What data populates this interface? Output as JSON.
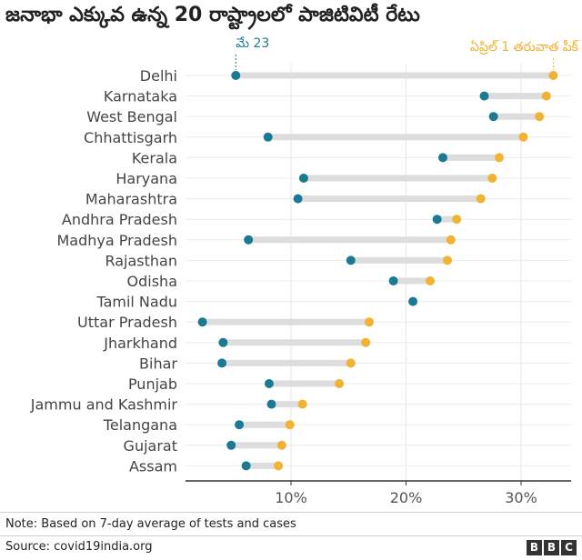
{
  "chart_data": {
    "type": "dumbbell",
    "title": "జనాభా ఎక్కువ ఉన్న 20 రాష్ట్రాలలో పాజిటివిటీ రేటు",
    "note": "Note: Based on 7-day average of tests and cases",
    "source": "Source: covid19india.org",
    "logo": [
      "B",
      "B",
      "C"
    ],
    "xlim": [
      0,
      34
    ],
    "xticks": [
      10,
      20,
      30
    ],
    "xtick_labels": [
      "10%",
      "20%",
      "30%"
    ],
    "grid": true,
    "annotations": {
      "start": {
        "text": "మే 23",
        "state": "Delhi",
        "color": "#1b7a93"
      },
      "end": {
        "text": "ఏప్రిల్ 1 తరువాత పీక్",
        "state": "Delhi",
        "color": "#f2b232"
      }
    },
    "colors": {
      "start": "#1b7a93",
      "end": "#f2b232",
      "bar": "#dddddd"
    },
    "series": [
      {
        "name": "మే 23",
        "values": [
          5.2,
          26.8,
          27.6,
          8.0,
          23.2,
          11.1,
          10.6,
          22.7,
          6.3,
          15.2,
          18.9,
          20.6,
          2.3,
          4.1,
          4.0,
          8.1,
          8.3,
          5.5,
          4.8,
          6.1
        ]
      },
      {
        "name": "ఏప్రిల్ 1 తరువాత పీక్",
        "values": [
          32.8,
          32.2,
          31.6,
          30.2,
          28.1,
          27.5,
          26.5,
          24.4,
          23.9,
          23.6,
          22.1,
          null,
          16.8,
          16.5,
          15.2,
          14.2,
          11.0,
          9.9,
          9.2,
          8.9
        ]
      }
    ],
    "categories": [
      "Delhi",
      "Karnataka",
      "West Bengal",
      "Chhattisgarh",
      "Kerala",
      "Haryana",
      "Maharashtra",
      "Andhra Pradesh",
      "Madhya Pradesh",
      "Rajasthan",
      "Odisha",
      "Tamil Nadu",
      "Uttar Pradesh",
      "Jharkhand",
      "Bihar",
      "Punjab",
      "Jammu and Kashmir",
      "Telangana",
      "Gujarat",
      "Assam"
    ]
  }
}
